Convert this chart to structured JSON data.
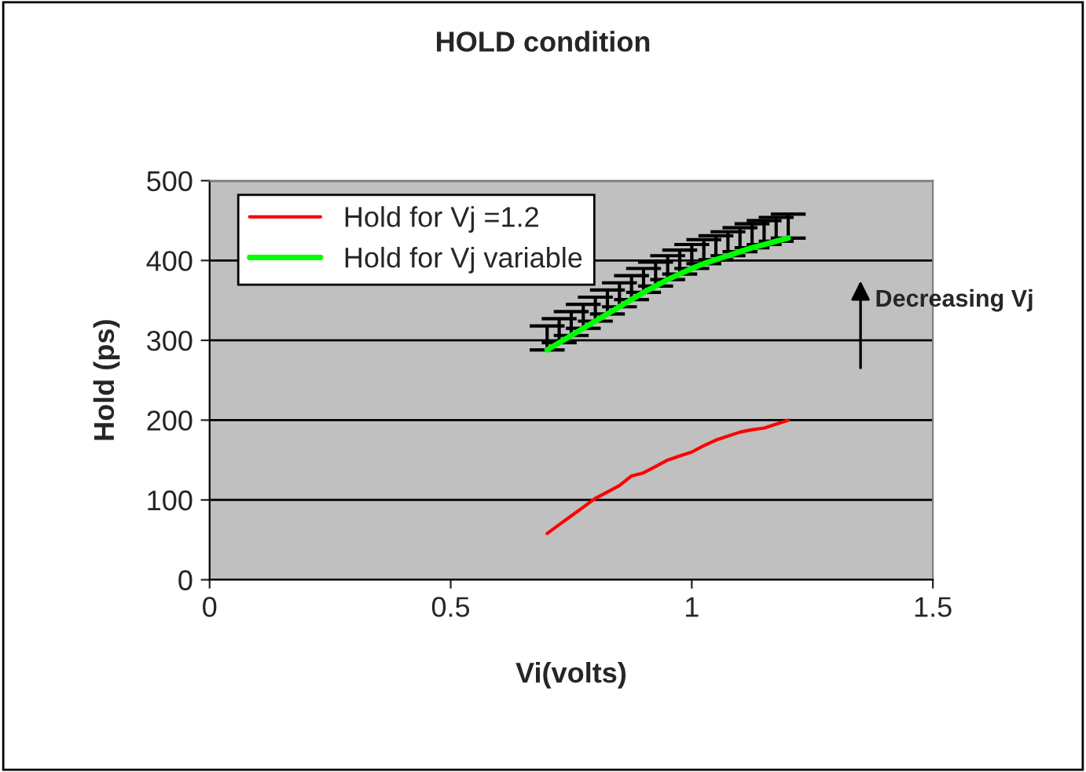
{
  "chart_data": {
    "type": "line",
    "title": "HOLD condition",
    "xlabel": "Vi(volts)",
    "ylabel": "Hold (ps)",
    "x": [
      0.7,
      0.725,
      0.75,
      0.775,
      0.8,
      0.825,
      0.85,
      0.875,
      0.9,
      0.925,
      0.95,
      0.975,
      1.0,
      1.025,
      1.05,
      1.075,
      1.1,
      1.125,
      1.15,
      1.175,
      1.2
    ],
    "series": [
      {
        "name": "Hold for Vj =1.2",
        "color": "#ff0000",
        "values": [
          58,
          69,
          80,
          91,
          102,
          110,
          118,
          130,
          134,
          142,
          150,
          155,
          160,
          168,
          175,
          180,
          185,
          188,
          190,
          195,
          200
        ]
      },
      {
        "name": "Hold for Vj variable",
        "color": "#00ff00",
        "values": [
          288,
          297,
          306,
          315,
          324,
          333,
          342,
          351,
          360,
          368,
          376,
          383,
          390,
          396,
          401,
          406,
          411,
          416,
          420,
          424,
          428
        ],
        "errors": [
          [
            288,
            318
          ],
          [
            297,
            327
          ],
          [
            306,
            336
          ],
          [
            315,
            345
          ],
          [
            324,
            354
          ],
          [
            333,
            363
          ],
          [
            342,
            372
          ],
          [
            351,
            381
          ],
          [
            360,
            390
          ],
          [
            368,
            398
          ],
          [
            376,
            406
          ],
          [
            383,
            413
          ],
          [
            390,
            420
          ],
          [
            396,
            426
          ],
          [
            401,
            431
          ],
          [
            406,
            436
          ],
          [
            411,
            441
          ],
          [
            416,
            446
          ],
          [
            420,
            450
          ],
          [
            424,
            454
          ],
          [
            428,
            458
          ]
        ]
      }
    ],
    "xlim": [
      0,
      1.5
    ],
    "xticks": [
      0,
      0.5,
      1,
      1.5
    ],
    "ylim": [
      0,
      500
    ],
    "yticks": [
      0,
      100,
      200,
      300,
      400,
      500
    ],
    "grid": "y",
    "legend": "top left",
    "marker": "none",
    "line_style": "solid",
    "annotations": [
      "Decreasing Vj"
    ]
  }
}
